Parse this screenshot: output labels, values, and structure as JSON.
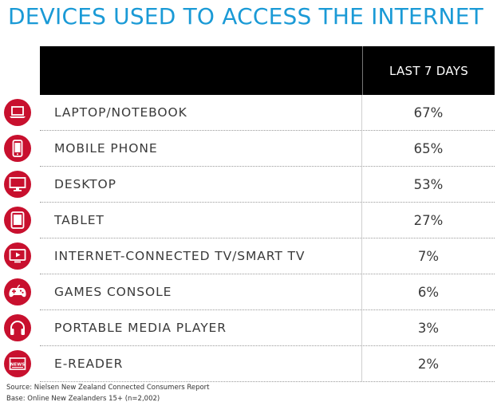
{
  "title": "DEVICES USED TO ACCESS THE INTERNET",
  "column_header": "LAST 7 DAYS",
  "colors": {
    "title": "#1a9ad6",
    "icon_background": "#c8102e",
    "header_background": "#000000"
  },
  "rows": [
    {
      "label": "LAPTOP/NOTEBOOK",
      "value": "67%",
      "icon": "laptop-icon"
    },
    {
      "label": "MOBILE PHONE",
      "value": "65%",
      "icon": "mobile-phone-icon"
    },
    {
      "label": "DESKTOP",
      "value": "53%",
      "icon": "desktop-monitor-icon"
    },
    {
      "label": "TABLET",
      "value": "27%",
      "icon": "tablet-icon"
    },
    {
      "label": "INTERNET-CONNECTED TV/SMART TV",
      "value": "7%",
      "icon": "smart-tv-icon"
    },
    {
      "label": "GAMES CONSOLE",
      "value": "6%",
      "icon": "game-controller-icon"
    },
    {
      "label": "PORTABLE MEDIA PLAYER",
      "value": "3%",
      "icon": "headphones-icon"
    },
    {
      "label": "E-READER",
      "value": "2%",
      "icon": "e-reader-icon"
    }
  ],
  "source": {
    "line1": "Source: Nielsen New Zealand Connected Consumers Report",
    "line2": "Base: Online New Zealanders 15+ (n=2,002)"
  },
  "chart_data": {
    "type": "table",
    "title": "DEVICES USED TO ACCESS THE INTERNET",
    "columns": [
      "LAST 7 DAYS"
    ],
    "categories": [
      "LAPTOP/NOTEBOOK",
      "MOBILE PHONE",
      "DESKTOP",
      "TABLET",
      "INTERNET-CONNECTED TV/SMART TV",
      "GAMES CONSOLE",
      "PORTABLE MEDIA PLAYER",
      "E-READER"
    ],
    "values": [
      67,
      65,
      53,
      27,
      7,
      6,
      3,
      2
    ],
    "unit": "%"
  }
}
